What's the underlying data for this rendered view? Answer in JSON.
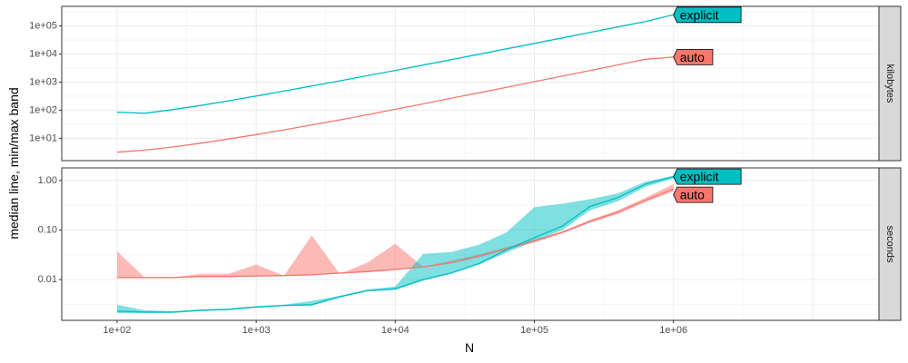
{
  "chart_data": {
    "type": "line",
    "xlabel": "N",
    "ylabel": "median line, min/max band",
    "x_scale": "log10",
    "x_ticks": [
      100,
      1000,
      10000,
      100000,
      1000000
    ],
    "x_tick_labels": [
      "1e+02",
      "1e+03",
      "1e+04",
      "1e+05",
      "1e+06"
    ],
    "xlim": [
      40,
      30000000
    ],
    "grid": true,
    "legend": "direct labels at line ends",
    "colors": {
      "auto": "#F8766D",
      "explicit": "#00BFC4"
    },
    "panels": [
      {
        "strip": "kilobytes",
        "y_scale": "log10",
        "ylim": [
          1.6,
          500000
        ],
        "y_ticks": [
          10,
          100,
          1000,
          10000,
          100000
        ],
        "y_tick_labels": [
          "1e+01",
          "1e+02",
          "1e+03",
          "1e+04",
          "1e+05"
        ],
        "series": [
          {
            "name": "auto",
            "x": [
              100,
              158,
              251,
              398,
              631,
              1000,
              1585,
              2512,
              3981,
              6310,
              10000,
              15850,
              25120,
              39810,
              63100,
              100000,
              158500,
              251200,
              398100,
              631000,
              1000000
            ],
            "y": [
              3.2,
              3.8,
              4.9,
              6.7,
              9.4,
              13.5,
              19.9,
              30,
              45,
              69,
              108,
              168,
              265,
              415,
              655,
              1035,
              1640,
              2595,
              4110,
              6505,
              7800
            ]
          },
          {
            "name": "explicit",
            "x": [
              100,
              158,
              251,
              398,
              631,
              1000,
              1585,
              2512,
              3981,
              6310,
              10000,
              15850,
              25120,
              39810,
              63100,
              100000,
              158500,
              251200,
              398100,
              631000,
              1000000
            ],
            "y": [
              85,
              78,
              105,
              148,
              215,
              320,
              480,
              730,
              1110,
              1700,
              2620,
              4050,
              6300,
              9800,
              15300,
              24000,
              37600,
              59000,
              92500,
              145000,
              250000
            ]
          }
        ]
      },
      {
        "strip": "seconds",
        "y_scale": "log10",
        "ylim": [
          0.0015,
          1.8
        ],
        "y_ticks": [
          0.01,
          0.1,
          1
        ],
        "y_tick_labels": [
          "0.01",
          "0.10",
          "1.00"
        ],
        "series": [
          {
            "name": "auto",
            "x": [
              100,
              158,
              251,
              398,
              631,
              1000,
              1585,
              2512,
              3981,
              6310,
              10000,
              15850,
              25120,
              39810,
              63100,
              100000,
              158500,
              251200,
              398100,
              631000,
              1000000
            ],
            "median": [
              0.011,
              0.011,
              0.011,
              0.0115,
              0.0115,
              0.0118,
              0.012,
              0.0125,
              0.0135,
              0.0145,
              0.016,
              0.018,
              0.022,
              0.03,
              0.042,
              0.06,
              0.09,
              0.15,
              0.23,
              0.4,
              0.68
            ],
            "min": [
              0.0108,
              0.0108,
              0.0108,
              0.0112,
              0.0112,
              0.0115,
              0.0118,
              0.0122,
              0.013,
              0.014,
              0.0155,
              0.0175,
              0.021,
              0.028,
              0.04,
              0.056,
              0.085,
              0.14,
              0.21,
              0.37,
              0.6
            ],
            "max": [
              0.037,
              0.011,
              0.011,
              0.013,
              0.013,
              0.02,
              0.012,
              0.078,
              0.013,
              0.022,
              0.053,
              0.018,
              0.024,
              0.032,
              0.045,
              0.065,
              0.095,
              0.16,
              0.25,
              0.45,
              0.85
            ]
          },
          {
            "name": "explicit",
            "x": [
              100,
              158,
              251,
              398,
              631,
              1000,
              1585,
              2512,
              3981,
              6310,
              10000,
              15850,
              25120,
              39810,
              63100,
              100000,
              158500,
              251200,
              398100,
              631000,
              1000000
            ],
            "median": [
              0.0023,
              0.0022,
              0.0022,
              0.0024,
              0.0025,
              0.0028,
              0.003,
              0.0031,
              0.0045,
              0.006,
              0.0065,
              0.01,
              0.0135,
              0.021,
              0.04,
              0.07,
              0.12,
              0.3,
              0.45,
              0.85,
              1.2
            ],
            "min": [
              0.0021,
              0.0021,
              0.0021,
              0.0023,
              0.0024,
              0.0027,
              0.0029,
              0.003,
              0.0043,
              0.0058,
              0.0062,
              0.0095,
              0.013,
              0.02,
              0.035,
              0.06,
              0.1,
              0.25,
              0.38,
              0.75,
              1.1
            ],
            "max": [
              0.0031,
              0.0024,
              0.0023,
              0.0025,
              0.0026,
              0.0029,
              0.0031,
              0.0037,
              0.0047,
              0.0063,
              0.0072,
              0.033,
              0.036,
              0.05,
              0.09,
              0.29,
              0.34,
              0.42,
              0.55,
              0.95,
              1.25
            ]
          }
        ]
      }
    ]
  }
}
